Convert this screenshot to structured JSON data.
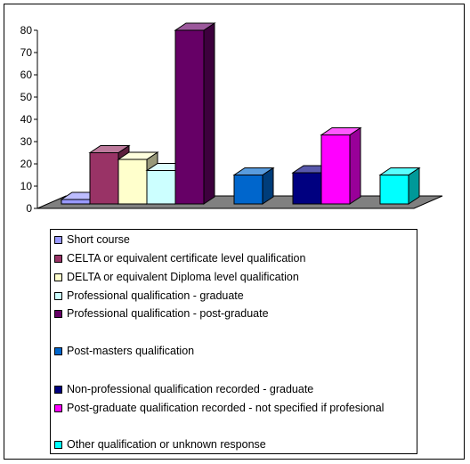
{
  "chart_data": {
    "type": "bar",
    "ylim": [
      0,
      80
    ],
    "yticks": [
      "0",
      "10",
      "20",
      "30",
      "40",
      "50",
      "60",
      "70",
      "80"
    ],
    "grid": false,
    "legend_placement": "bottom",
    "series": [
      {
        "name": "Short course",
        "value": 2,
        "group": 1,
        "color": "#9999FF"
      },
      {
        "name": "CELTA or equivalent certificate level qualification",
        "value": 23,
        "group": 1,
        "color": "#993366"
      },
      {
        "name": "DELTA or equivalent Diploma level qualification",
        "value": 20,
        "group": 1,
        "color": "#FFFFCC"
      },
      {
        "name": "Professional qualification - graduate",
        "value": 15,
        "group": 1,
        "color": "#CCFFFF"
      },
      {
        "name": "Professional qualification - post-graduate",
        "value": 78,
        "group": 1,
        "color": "#660066"
      },
      {
        "name": "Post-masters qualification",
        "value": 13,
        "group": 2,
        "color": "#0066CC"
      },
      {
        "name": "Non-professional qualification recorded - graduate",
        "value": 14,
        "group": 3,
        "color": "#000080"
      },
      {
        "name": "Post-graduate qualification recorded - not specified if profesional",
        "value": 31,
        "group": 3,
        "color": "#FF00FF"
      },
      {
        "name": "Other qualification or unknown response",
        "value": 13,
        "group": 4,
        "color": "#00FFFF"
      }
    ]
  }
}
